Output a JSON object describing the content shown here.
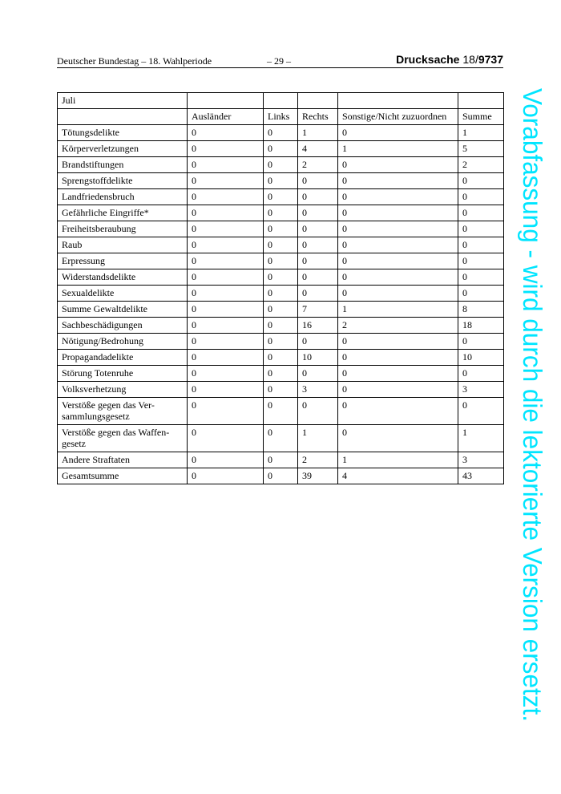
{
  "header": {
    "left": "Deutscher Bundestag – 18. Wahlperiode",
    "center": "– 29 –",
    "right_label": "Drucksache",
    "right_num_prefix": "18/",
    "right_num": "9737"
  },
  "table": {
    "title": "Juli",
    "columns": [
      "",
      "Ausländer",
      "Links",
      "Rechts",
      "Sonstige/Nicht zuzuordnen",
      "Summe"
    ],
    "rows": [
      [
        "Tötungsdelikte",
        "0",
        "0",
        "1",
        "0",
        "1"
      ],
      [
        "Körperverletzungen",
        "0",
        "0",
        "4",
        "1",
        "5"
      ],
      [
        "Brandstiftungen",
        "0",
        "0",
        "2",
        "0",
        "2"
      ],
      [
        "Sprengstoffdelikte",
        "0",
        "0",
        "0",
        "0",
        "0"
      ],
      [
        "Landfriedensbruch",
        "0",
        "0",
        "0",
        "0",
        "0"
      ],
      [
        "Gefährliche Eingriffe*",
        "0",
        "0",
        "0",
        "0",
        "0"
      ],
      [
        "Freiheitsberaubung",
        "0",
        "0",
        "0",
        "0",
        "0"
      ],
      [
        "Raub",
        "0",
        "0",
        "0",
        "0",
        "0"
      ],
      [
        "Erpressung",
        "0",
        "0",
        "0",
        "0",
        "0"
      ],
      [
        "Widerstandsdelikte",
        "0",
        "0",
        "0",
        "0",
        "0"
      ],
      [
        "Sexualdelikte",
        "0",
        "0",
        "0",
        "0",
        "0"
      ],
      [
        "Summe Gewaltdelikte",
        "0",
        "0",
        "7",
        "1",
        "8"
      ],
      [
        "Sachbeschädigungen",
        "0",
        "0",
        "16",
        "2",
        "18"
      ],
      [
        "Nötigung/Bedrohung",
        "0",
        "0",
        "0",
        "0",
        "0"
      ],
      [
        "Propagandadelikte",
        "0",
        "0",
        "10",
        "0",
        "10"
      ],
      [
        "Störung Totenruhe",
        "0",
        "0",
        "0",
        "0",
        "0"
      ],
      [
        "Volksverhetzung",
        "0",
        "0",
        "3",
        "0",
        "3"
      ],
      [
        "Verstöße gegen das Ver-\nsammlungsgesetz",
        "0",
        "0",
        "0",
        "0",
        "0"
      ],
      [
        "Verstöße gegen das Waffen-\ngesetz",
        "0",
        "0",
        "1",
        "0",
        "1"
      ],
      [
        "Andere Straftaten",
        "0",
        "0",
        "2",
        "1",
        "3"
      ],
      [
        "Gesamtsumme",
        "0",
        "0",
        "39",
        "4",
        "43"
      ]
    ]
  },
  "watermark": {
    "text": "Vorabfassung - wird durch die lektorierte Version ersetzt.",
    "color": "#00e5ff"
  }
}
